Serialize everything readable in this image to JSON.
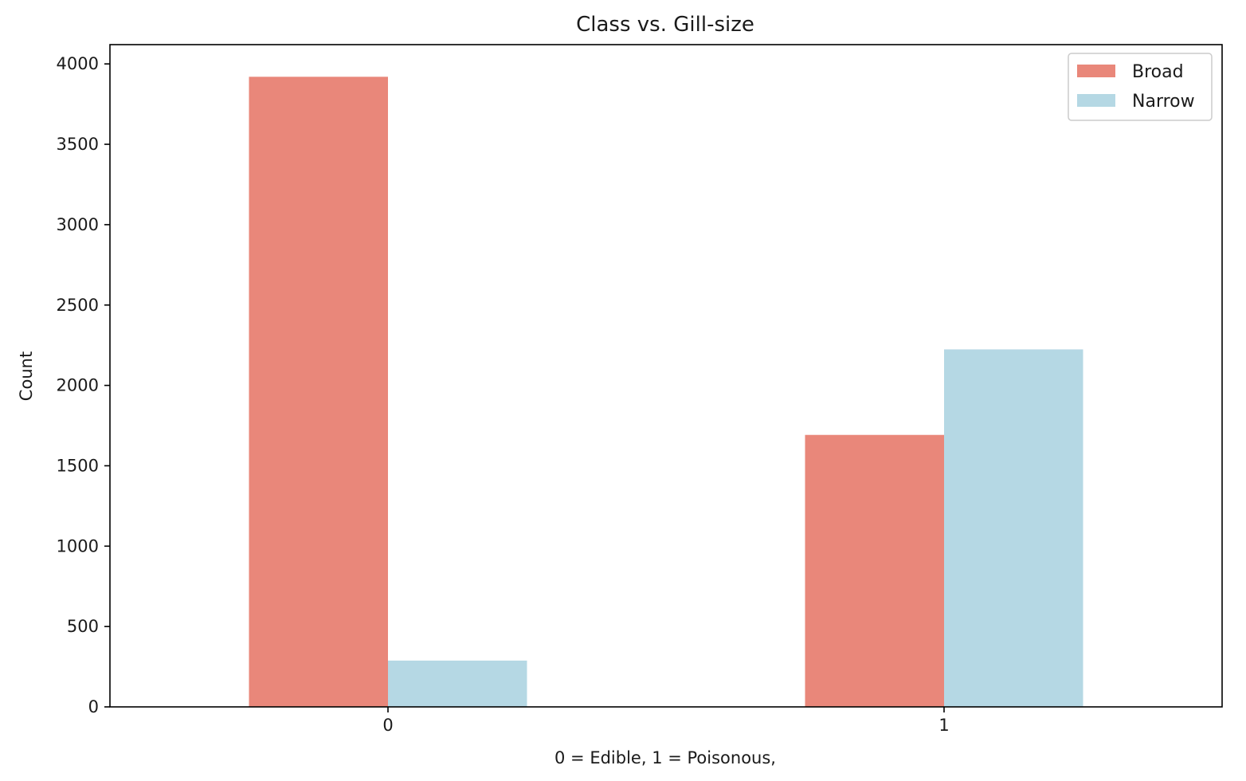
{
  "chart_data": {
    "type": "bar",
    "title": "Class vs. Gill-size",
    "xlabel": "0 = Edible, 1 = Poisonous,",
    "ylabel": "Count",
    "categories": [
      "0",
      "1"
    ],
    "series": [
      {
        "name": "Broad",
        "color": "#e9877a",
        "values": [
          3920,
          1692
        ]
      },
      {
        "name": "Narrow",
        "color": "#b5d8e4",
        "values": [
          288,
          2224
        ]
      }
    ],
    "ylim": [
      0,
      4120
    ],
    "yticks": [
      0,
      500,
      1000,
      1500,
      2000,
      2500,
      3000,
      3500,
      4000
    ],
    "grid": false,
    "legend_position": "top-right"
  }
}
